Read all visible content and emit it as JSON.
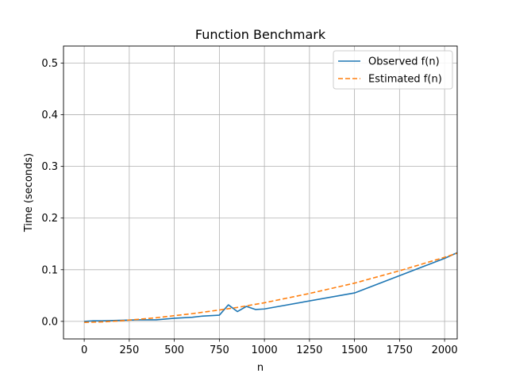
{
  "chart_data": {
    "type": "line",
    "title": "Function Benchmark",
    "xlabel": "n",
    "ylabel": "Time (seconds)",
    "xlim": [
      -115,
      2070
    ],
    "ylim": [
      -0.034,
      0.533
    ],
    "x_ticks": [
      0,
      250,
      500,
      750,
      1000,
      1250,
      1500,
      1750,
      2000
    ],
    "y_ticks": [
      0.0,
      0.1,
      0.2,
      0.3,
      0.4,
      0.5
    ],
    "x_tick_labels": [
      "0",
      "250",
      "500",
      "750",
      "1000",
      "1250",
      "1500",
      "1750",
      "2000"
    ],
    "y_tick_labels": [
      "0.0",
      "0.1",
      "0.2",
      "0.3",
      "0.4",
      "0.5"
    ],
    "grid": true,
    "legend_position": "top-right",
    "series": [
      {
        "name": "Observed f(n)",
        "color": "#1f77b4",
        "style": "solid",
        "points": [
          [
            0,
            0.0
          ],
          [
            50,
            0.001
          ],
          [
            100,
            0.001
          ],
          [
            200,
            0.002
          ],
          [
            300,
            0.003
          ],
          [
            400,
            0.003
          ],
          [
            500,
            0.006
          ],
          [
            600,
            0.008
          ],
          [
            650,
            0.01
          ],
          [
            750,
            0.012
          ],
          [
            800,
            0.032
          ],
          [
            850,
            0.019
          ],
          [
            900,
            0.029
          ],
          [
            950,
            0.023
          ],
          [
            1000,
            0.024
          ],
          [
            1500,
            0.055
          ],
          [
            2000,
            0.122
          ],
          [
            2070,
            0.133
          ]
        ]
      },
      {
        "name": "Estimated f(n)",
        "color": "#ff7f0e",
        "style": "dashed",
        "points": [
          [
            0,
            -0.002
          ],
          [
            100,
            -0.001
          ],
          [
            200,
            0.001
          ],
          [
            300,
            0.004
          ],
          [
            400,
            0.007
          ],
          [
            500,
            0.011
          ],
          [
            600,
            0.015
          ],
          [
            750,
            0.022
          ],
          [
            850,
            0.027
          ],
          [
            1000,
            0.036
          ],
          [
            1250,
            0.054
          ],
          [
            1500,
            0.074
          ],
          [
            1750,
            0.098
          ],
          [
            2000,
            0.124
          ],
          [
            2070,
            0.132
          ]
        ]
      }
    ]
  }
}
